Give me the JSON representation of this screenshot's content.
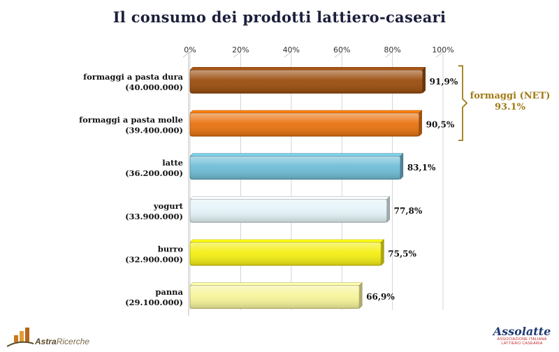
{
  "title": "Il consumo dei prodotti lattiero-caseari",
  "chart_data": {
    "type": "bar",
    "orientation": "horizontal",
    "categories": [
      {
        "label": "formaggi a pasta dura",
        "sublabel": "(40.000.000)",
        "value": 91.9,
        "value_label": "91,9%",
        "color": "#9b4d0e"
      },
      {
        "label": "formaggi a pasta molle",
        "sublabel": "(39.400.000)",
        "value": 90.5,
        "value_label": "90,5%",
        "color": "#e8730f"
      },
      {
        "label": "latte",
        "sublabel": "(36.200.000)",
        "value": 83.1,
        "value_label": "83,1%",
        "color": "#6fbdd6"
      },
      {
        "label": "yogurt",
        "sublabel": "(33.900.000)",
        "value": 77.8,
        "value_label": "77,8%",
        "color": "#e4f3f8"
      },
      {
        "label": "burro",
        "sublabel": "(32.900.000)",
        "value": 75.5,
        "value_label": "75,5%",
        "color": "#f4ee12"
      },
      {
        "label": "panna",
        "sublabel": "(29.100.000)",
        "value": 66.9,
        "value_label": "66,9%",
        "color": "#f7f49a"
      }
    ],
    "xaxis": {
      "ticks": [
        "0%",
        "20%",
        "40%",
        "60%",
        "80%",
        "100%"
      ],
      "xlim": [
        0,
        100
      ],
      "position": "top",
      "grid": true
    },
    "annotation": {
      "label": "formaggi (NET)",
      "value": "93.1%",
      "color": "#a07a16",
      "applies_to": [
        "formaggi a pasta dura",
        "formaggi a pasta molle"
      ]
    }
  },
  "logos": {
    "left": {
      "name_bold": "Astra",
      "name_rest": "Ricerche"
    },
    "right": {
      "name": "Assolatte",
      "subtitle_1": "ASSOCIAZIONE ITALIANA",
      "subtitle_2": "LATTIERO CASEARIA"
    }
  }
}
